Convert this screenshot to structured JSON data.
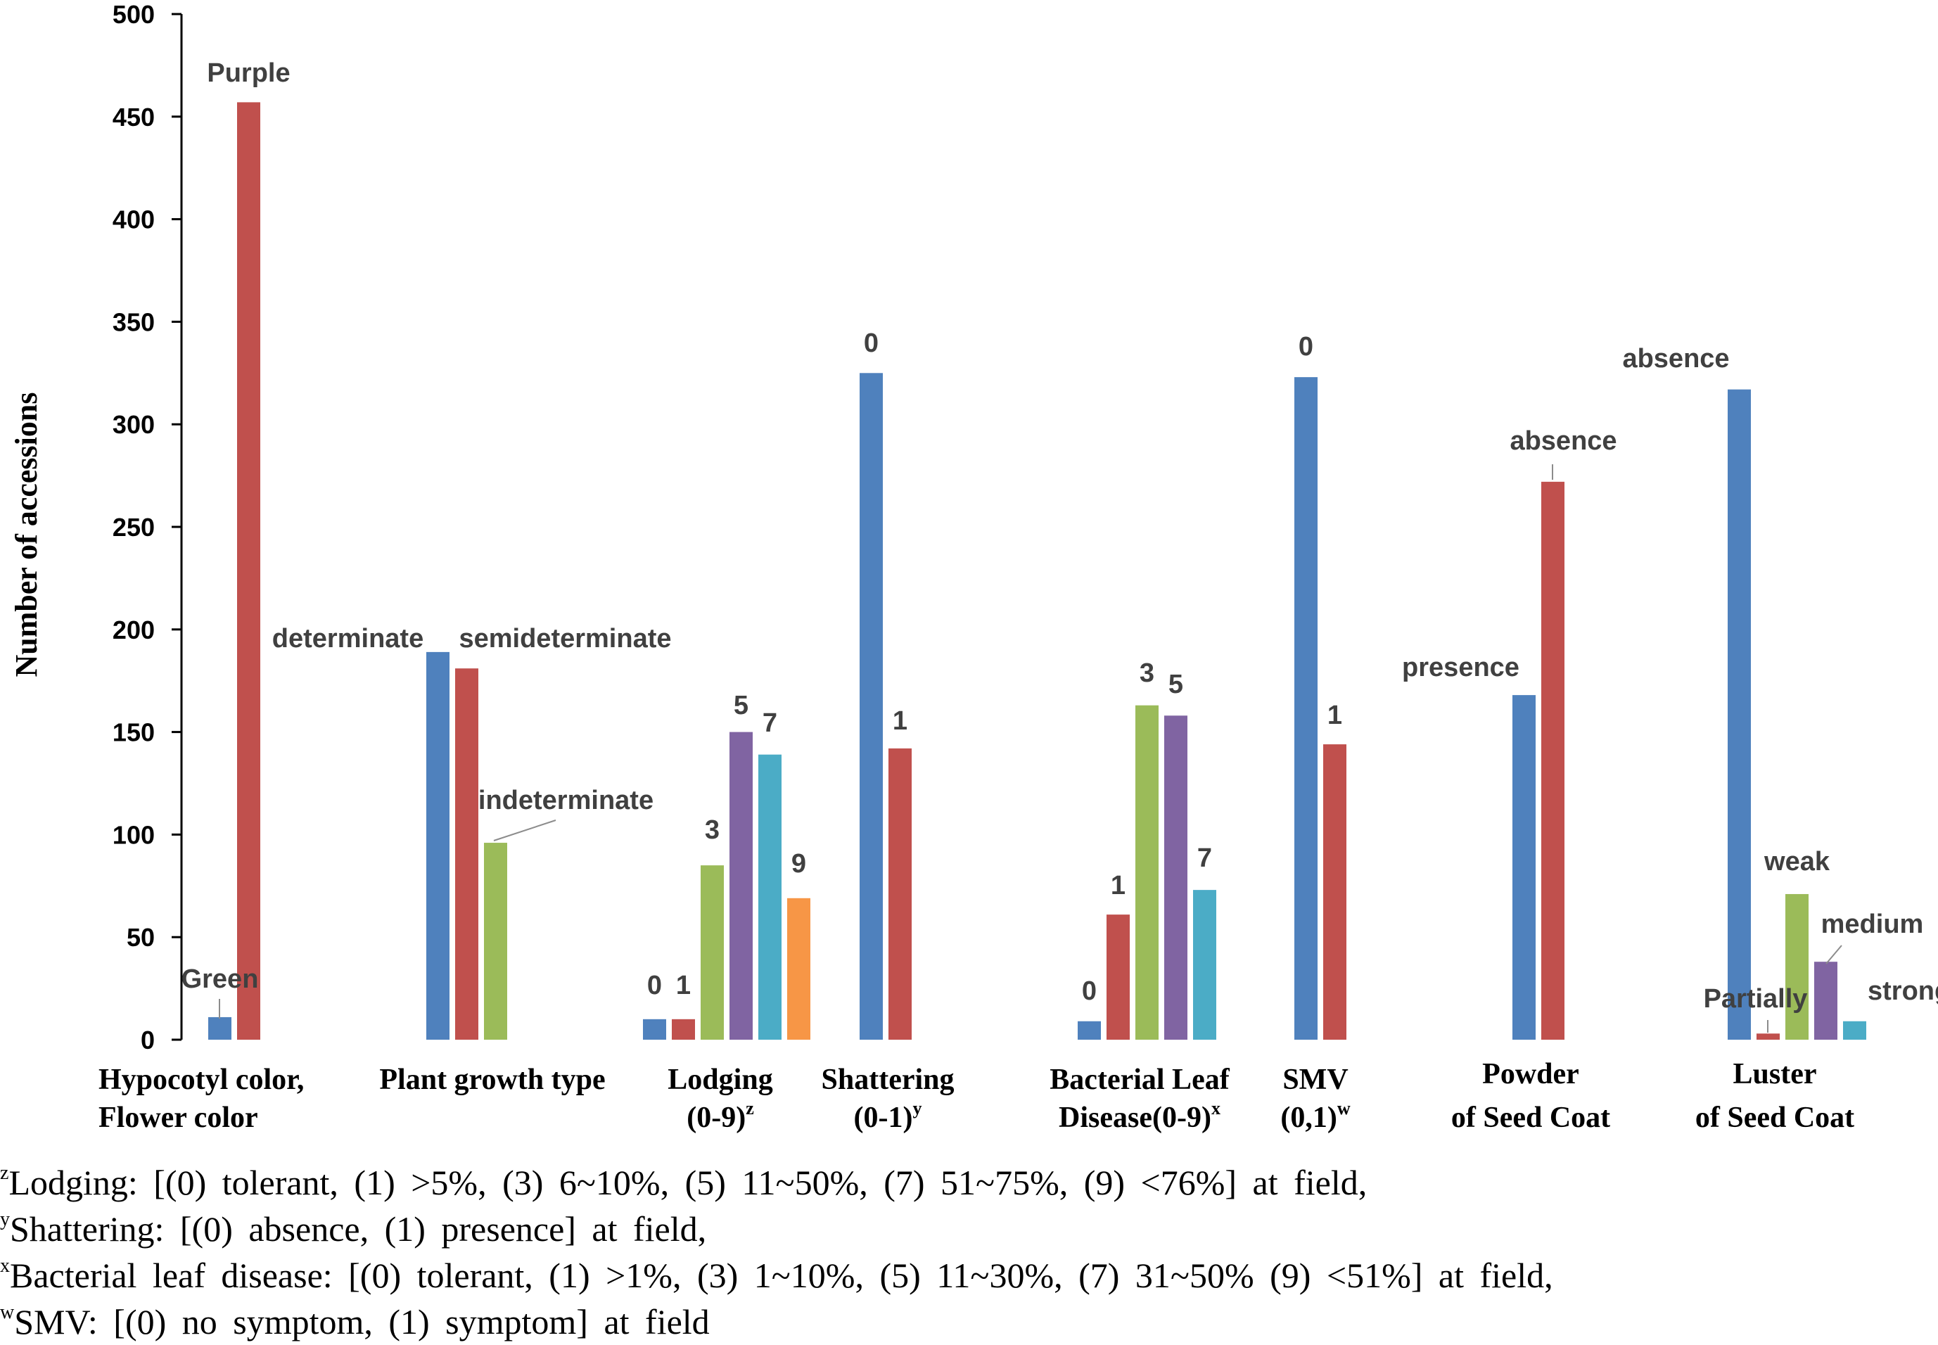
{
  "chart_data": {
    "type": "bar",
    "ylabel": "Number of accessions",
    "ylim": [
      0,
      500
    ],
    "yticks": [
      0,
      50,
      100,
      150,
      200,
      250,
      300,
      350,
      400,
      450,
      500
    ],
    "grid": false,
    "legend": "none",
    "groups": [
      {
        "label_lines": [
          "Hypocotyl color,",
          "Flower color"
        ],
        "sup": "",
        "bars": [
          {
            "label": "Green",
            "value": 11,
            "color": "#4f81bd"
          },
          {
            "label": "Purple",
            "value": 457,
            "color": "#c0504d"
          }
        ]
      },
      {
        "label_lines": [
          "Plant growth type"
        ],
        "sup": "",
        "bars": [
          {
            "label": "determinate",
            "value": 189,
            "color": "#4f81bd"
          },
          {
            "label": "semideterminate",
            "value": 181,
            "color": "#c0504d"
          },
          {
            "label": "indeterminate",
            "value": 96,
            "color": "#9bbb59"
          }
        ]
      },
      {
        "label_lines": [
          "Lodging",
          "(0-9)"
        ],
        "sup": "z",
        "bars": [
          {
            "label": "0",
            "value": 10,
            "color": "#4f81bd"
          },
          {
            "label": "1",
            "value": 10,
            "color": "#c0504d"
          },
          {
            "label": "3",
            "value": 85,
            "color": "#9bbb59"
          },
          {
            "label": "5",
            "value": 150,
            "color": "#8064a2"
          },
          {
            "label": "7",
            "value": 139,
            "color": "#4bacc6"
          },
          {
            "label": "9",
            "value": 69,
            "color": "#f79646"
          }
        ]
      },
      {
        "label_lines": [
          "Shattering",
          "(0-1)"
        ],
        "sup": "y",
        "bars": [
          {
            "label": "0",
            "value": 325,
            "color": "#4f81bd"
          },
          {
            "label": "1",
            "value": 142,
            "color": "#c0504d"
          }
        ]
      },
      {
        "label_lines": [
          "Bacterial Leaf",
          "Disease(0-9)"
        ],
        "sup": "x",
        "bars": [
          {
            "label": "0",
            "value": 9,
            "color": "#4f81bd"
          },
          {
            "label": "1",
            "value": 61,
            "color": "#c0504d"
          },
          {
            "label": "3",
            "value": 163,
            "color": "#9bbb59"
          },
          {
            "label": "5",
            "value": 158,
            "color": "#8064a2"
          },
          {
            "label": "7",
            "value": 73,
            "color": "#4bacc6"
          }
        ]
      },
      {
        "label_lines": [
          "SMV",
          "(0,1)"
        ],
        "sup": "w",
        "bars": [
          {
            "label": "0",
            "value": 323,
            "color": "#4f81bd"
          },
          {
            "label": "1",
            "value": 144,
            "color": "#c0504d"
          }
        ]
      },
      {
        "label_lines": [
          "Powder",
          "of Seed Coat"
        ],
        "sup": "",
        "bars": [
          {
            "label": "presence",
            "value": 168,
            "color": "#4f81bd"
          },
          {
            "label": "absence",
            "value": 272,
            "color": "#c0504d"
          }
        ]
      },
      {
        "label_lines": [
          "Luster",
          "of Seed Coat"
        ],
        "sup": "",
        "bars": [
          {
            "label": "absence",
            "value": 317,
            "color": "#4f81bd"
          },
          {
            "label": "Partially",
            "value": 3,
            "color": "#c0504d"
          },
          {
            "label": "weak",
            "value": 71,
            "color": "#9bbb59"
          },
          {
            "label": "medium",
            "value": 38,
            "color": "#8064a2"
          },
          {
            "label": "strong",
            "value": 9,
            "color": "#4bacc6"
          }
        ]
      }
    ]
  },
  "footnotes": [
    {
      "sup": "z",
      "text": "Lodging: [(0) tolerant, (1) >5%, (3) 6~10%, (5) 11~50%, (7) 51~75%, (9) <76%] at field,"
    },
    {
      "sup": "y",
      "text": "Shattering: [(0) absence, (1) presence] at field,"
    },
    {
      "sup": "x",
      "text": "Bacterial leaf disease: [(0) tolerant, (1) >1%, (3) 1~10%, (5) 11~30%, (7) 31~50% (9) <51%] at field,"
    },
    {
      "sup": "w",
      "text": "SMV: [(0) no symptom, (1) symptom] at field"
    }
  ]
}
